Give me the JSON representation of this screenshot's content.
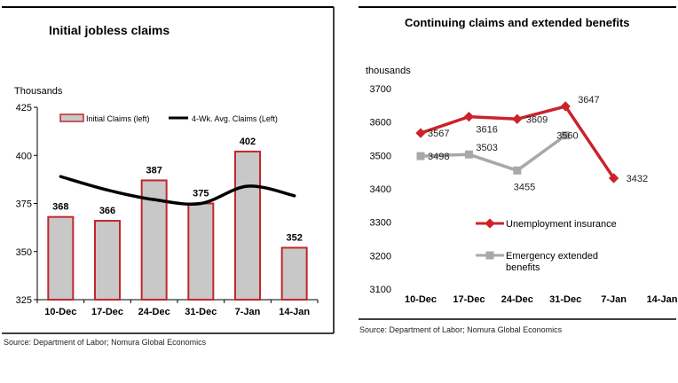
{
  "colors": {
    "claims_bar_fill": "#c8c8c8",
    "claims_bar_stroke": "#c0282d",
    "avg_line": "#000000",
    "rule_line": "#000000",
    "ui_line": "#cc2229",
    "eeb_line": "#a8a8a8"
  },
  "chart_data": [
    {
      "type": "bar",
      "title": "Initial jobless claims",
      "ylabel": "Thousands",
      "ylim": [
        325,
        425
      ],
      "yticks": [
        325,
        350,
        375,
        400,
        425
      ],
      "categories": [
        "10-Dec",
        "17-Dec",
        "24-Dec",
        "31-Dec",
        "7-Jan",
        "14-Jan"
      ],
      "series": [
        {
          "name": "Initial Claims (left)",
          "type": "bar",
          "values": [
            368,
            366,
            387,
            375,
            402,
            352
          ]
        },
        {
          "name": "4-Wk. Avg. Claims (Left)",
          "type": "line",
          "values": [
            389,
            382,
            377,
            375,
            384,
            379
          ]
        }
      ],
      "grid": false,
      "legend": "top"
    },
    {
      "type": "line",
      "title": "Continuing claims and extended benefits",
      "ylabel": "thousands",
      "ylim": [
        3100,
        3700
      ],
      "yticks": [
        3100,
        3200,
        3300,
        3400,
        3500,
        3600,
        3700
      ],
      "categories": [
        "10-Dec",
        "17-Dec",
        "24-Dec",
        "31-Dec",
        "7-Jan",
        "14-Jan"
      ],
      "series": [
        {
          "name": "Unemployment insurance",
          "values": [
            3567,
            3616,
            3609,
            3647,
            3432,
            null
          ],
          "labels": [
            "3567",
            "3616",
            "3609",
            "3647",
            "3432",
            ""
          ]
        },
        {
          "name": "Emergency extended benefits",
          "values": [
            3498,
            3503,
            3455,
            3560,
            null,
            null
          ],
          "labels": [
            "3498",
            "3503",
            "3455",
            "3560",
            "",
            ""
          ]
        }
      ],
      "legend_lines": [
        [
          "Unemployment insurance"
        ],
        [
          "Emergency extended",
          "benefits"
        ]
      ],
      "grid": false,
      "legend": "lower-middle"
    }
  ],
  "sources": {
    "left": "Source: Department of Labor; Nomura Global Economics",
    "right": "Source: Department of Labor; Nomura Global Economics"
  }
}
